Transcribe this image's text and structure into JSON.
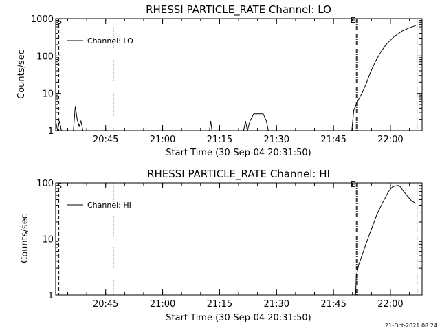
{
  "footer": {
    "timestamp": "21-Oct-2021 08:24"
  },
  "chart_data": [
    {
      "type": "line",
      "title": "RHESSI PARTICLE_RATE Channel: LO",
      "xlabel": "Start Time (30-Sep-04 20:31:50)",
      "ylabel": "Counts/sec",
      "yscale": "log",
      "xlim": [
        "20:31:50",
        "22:08:20"
      ],
      "ylim": [
        1,
        1000
      ],
      "x_tick_labels": [
        "20:45",
        "21:00",
        "21:15",
        "21:30",
        "21:45",
        "22:00"
      ],
      "y_tick_labels": [
        "1",
        "10",
        "100",
        "1000"
      ],
      "legend": {
        "label": "Channel: LO",
        "position": "top-left"
      },
      "markers": [
        "S",
        "E"
      ],
      "vlines": [
        {
          "x": "20:32:40",
          "style": "dashed"
        },
        {
          "x": "20:47:00",
          "style": "dotted"
        },
        {
          "x": "21:51:00",
          "style": "dash-dot"
        },
        {
          "x": "21:51:20",
          "style": "dash-dot"
        },
        {
          "x": "22:07:00",
          "style": "dash-dot"
        }
      ],
      "series": [
        {
          "name": "Channel: LO",
          "x": [
            "20:31:50",
            "20:32:20",
            "20:32:50",
            "20:33:20",
            "20:36:30",
            "20:37:00",
            "20:37:30",
            "20:38:00",
            "20:38:30",
            "20:39:00",
            "20:39:30",
            "21:12:20",
            "21:12:40",
            "21:13:00",
            "21:21:20",
            "21:21:50",
            "21:22:20",
            "21:23:00",
            "21:24:00",
            "21:25:30",
            "21:26:30",
            "21:27:20",
            "21:27:50",
            "21:49:50",
            "21:50:20",
            "21:51:00",
            "21:51:40",
            "21:52:30",
            "21:53:30",
            "21:54:40",
            "21:56:00",
            "21:57:30",
            "21:59:00",
            "22:01:00",
            "22:03:00",
            "22:05:00",
            "22:06:40"
          ],
          "y": [
            1.8,
            1,
            1.8,
            1,
            1,
            4.5,
            2,
            1.3,
            1.8,
            1,
            1,
            1,
            1.8,
            1,
            1,
            1.8,
            1,
            1.8,
            2.8,
            2.8,
            2.8,
            1.8,
            1,
            1,
            3.5,
            5,
            7,
            10,
            17,
            35,
            70,
            130,
            210,
            330,
            460,
            570,
            650
          ]
        }
      ]
    },
    {
      "type": "line",
      "title": "RHESSI PARTICLE_RATE Channel: HI",
      "xlabel": "Start Time (30-Sep-04 20:31:50)",
      "ylabel": "Counts/sec",
      "yscale": "log",
      "xlim": [
        "20:31:50",
        "22:08:20"
      ],
      "ylim": [
        1,
        100
      ],
      "x_tick_labels": [
        "20:45",
        "21:00",
        "21:15",
        "21:30",
        "21:45",
        "22:00"
      ],
      "y_tick_labels": [
        "1",
        "10",
        "100"
      ],
      "legend": {
        "label": "Channel: HI",
        "position": "top-left"
      },
      "markers": [
        "S",
        "E"
      ],
      "vlines": [
        {
          "x": "20:32:40",
          "style": "dashed"
        },
        {
          "x": "20:47:00",
          "style": "dotted"
        },
        {
          "x": "21:51:00",
          "style": "dash-dot"
        },
        {
          "x": "21:51:20",
          "style": "dash-dot"
        },
        {
          "x": "22:07:00",
          "style": "dash-dot"
        }
      ],
      "series": [
        {
          "name": "Channel: HI",
          "x": [
            "21:50:50",
            "21:51:00",
            "21:51:40",
            "21:52:30",
            "21:53:30",
            "21:55:00",
            "21:56:30",
            "21:58:00",
            "21:59:30",
            "22:00:30",
            "22:01:20",
            "22:02:00",
            "22:02:40",
            "22:03:20",
            "22:04:30",
            "22:05:30",
            "22:06:40"
          ],
          "y": [
            1,
            2.2,
            3.5,
            5,
            8,
            15,
            28,
            45,
            70,
            85,
            88,
            90,
            85,
            72,
            58,
            48,
            43
          ]
        }
      ]
    }
  ]
}
